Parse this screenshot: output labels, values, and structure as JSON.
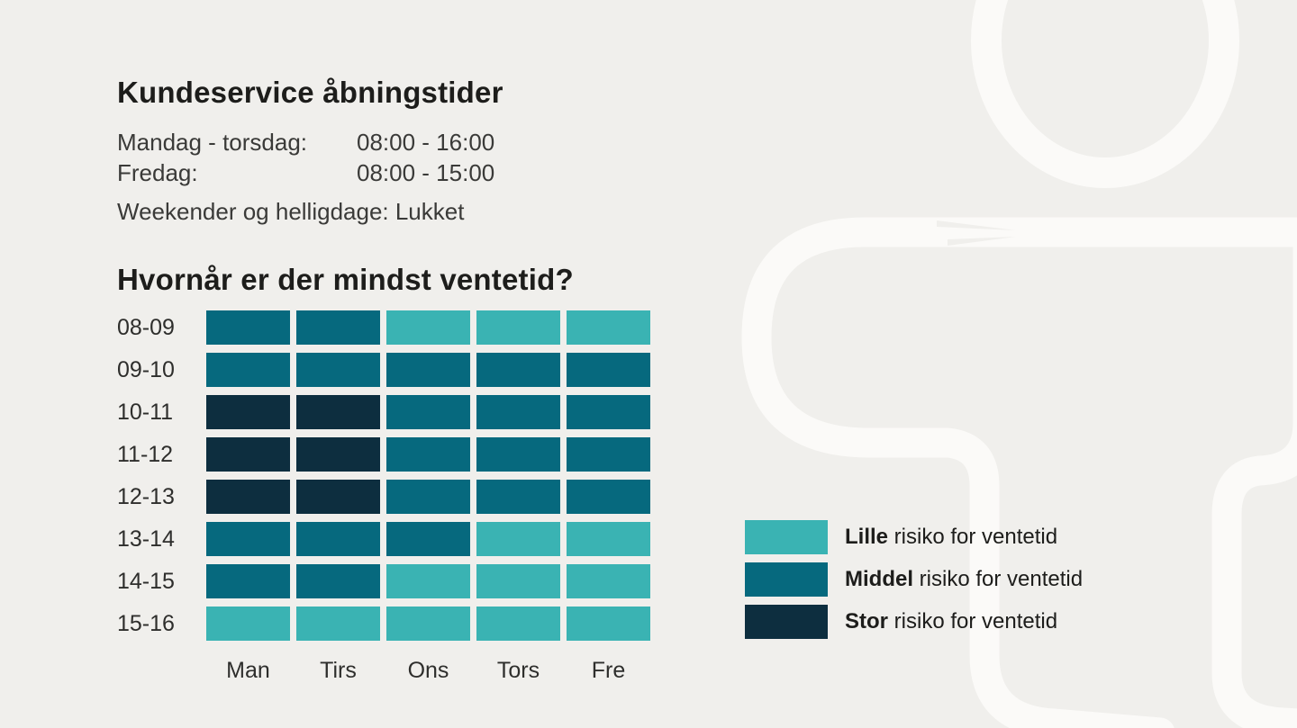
{
  "page": {
    "background_color": "#f0efec",
    "decor_color": "#fbfaf8",
    "text_color": "#1d1d1b"
  },
  "opening_hours": {
    "title": "Kundeservice åbningstider",
    "rows": [
      {
        "label": "Mandag - torsdag:",
        "value": "08:00 - 16:00"
      },
      {
        "label": "Fredag:",
        "value": "08:00 - 15:00"
      }
    ],
    "note": "Weekender og helligdage: Lukket"
  },
  "heatmap": {
    "title": "Hvornår er der mindst ventetid?",
    "row_labels": [
      "08-09",
      "09-10",
      "10-11",
      "11-12",
      "12-13",
      "13-14",
      "14-15",
      "15-16"
    ],
    "col_labels": [
      "Man",
      "Tirs",
      "Ons",
      "Tors",
      "Fre"
    ],
    "levels": {
      "lille": "#3ab3b3",
      "middel": "#06697e",
      "stor": "#0d2e3f"
    },
    "cells": [
      [
        "middel",
        "middel",
        "lille",
        "lille",
        "lille"
      ],
      [
        "middel",
        "middel",
        "middel",
        "middel",
        "middel"
      ],
      [
        "stor",
        "stor",
        "middel",
        "middel",
        "middel"
      ],
      [
        "stor",
        "stor",
        "middel",
        "middel",
        "middel"
      ],
      [
        "stor",
        "stor",
        "middel",
        "middel",
        "middel"
      ],
      [
        "middel",
        "middel",
        "middel",
        "lille",
        "lille"
      ],
      [
        "middel",
        "middel",
        "lille",
        "lille",
        "lille"
      ],
      [
        "lille",
        "lille",
        "lille",
        "lille",
        "lille"
      ]
    ]
  },
  "legend": {
    "items": [
      {
        "level": "lille",
        "bold": "Lille",
        "rest": " risiko for ventetid",
        "color": "#3ab3b3"
      },
      {
        "level": "middel",
        "bold": "Middel",
        "rest": " risiko for ventetid",
        "color": "#06697e"
      },
      {
        "level": "stor",
        "bold": "Stor",
        "rest": " risiko for ventetid",
        "color": "#0d2e3f"
      }
    ]
  },
  "chart_data": {
    "type": "heatmap",
    "title": "Hvornår er der mindst ventetid?",
    "x": [
      "Man",
      "Tirs",
      "Ons",
      "Tors",
      "Fre"
    ],
    "y": [
      "08-09",
      "09-10",
      "10-11",
      "11-12",
      "12-13",
      "13-14",
      "14-15",
      "15-16"
    ],
    "values": [
      [
        2,
        2,
        1,
        1,
        1
      ],
      [
        2,
        2,
        2,
        2,
        2
      ],
      [
        3,
        3,
        2,
        2,
        2
      ],
      [
        3,
        3,
        2,
        2,
        2
      ],
      [
        3,
        3,
        2,
        2,
        2
      ],
      [
        2,
        2,
        2,
        1,
        1
      ],
      [
        2,
        2,
        1,
        1,
        1
      ],
      [
        1,
        1,
        1,
        1,
        1
      ]
    ],
    "value_labels": {
      "1": "Lille risiko for ventetid",
      "2": "Middel risiko for ventetid",
      "3": "Stor risiko for ventetid"
    },
    "colors": {
      "1": "#3ab3b3",
      "2": "#06697e",
      "3": "#0d2e3f"
    },
    "legend_position": "right",
    "grid": false
  }
}
